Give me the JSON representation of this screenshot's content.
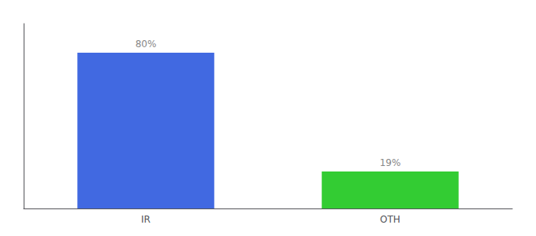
{
  "chart_data": {
    "type": "bar",
    "categories": [
      "IR",
      "OTH"
    ],
    "values": [
      80,
      19
    ],
    "value_labels": [
      "80%",
      "19%"
    ],
    "colors": [
      "#4169e1",
      "#33cc33"
    ],
    "ylim": [
      0,
      95
    ],
    "grid": false,
    "data_labels": true,
    "tick_labels": "x"
  }
}
